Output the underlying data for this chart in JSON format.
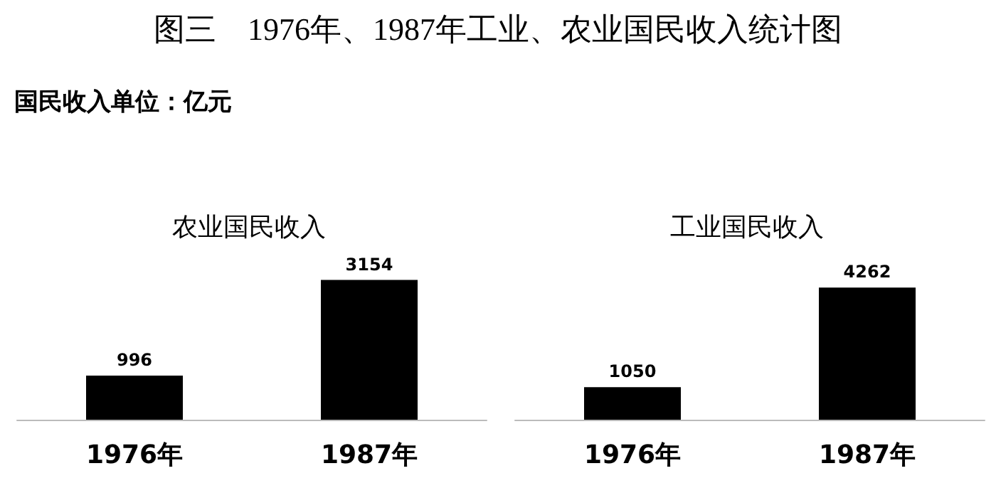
{
  "chart_data": [
    {
      "type": "bar",
      "title": "农业国民收入",
      "annotations": [
        "图三　1976年、1987年工业、农业国民收入统计图",
        "国民收入单位：亿元"
      ],
      "categories": [
        "1976年",
        "1987年"
      ],
      "values": [
        996,
        3154
      ],
      "color": "#000000",
      "data_labels": true,
      "grid": false,
      "tick_labels": "x"
    },
    {
      "type": "bar",
      "title": "工业国民收入",
      "categories": [
        "1976年",
        "1987年"
      ],
      "values": [
        1050,
        4262
      ],
      "color": "#000000",
      "data_labels": true,
      "grid": false,
      "tick_labels": "x"
    }
  ]
}
